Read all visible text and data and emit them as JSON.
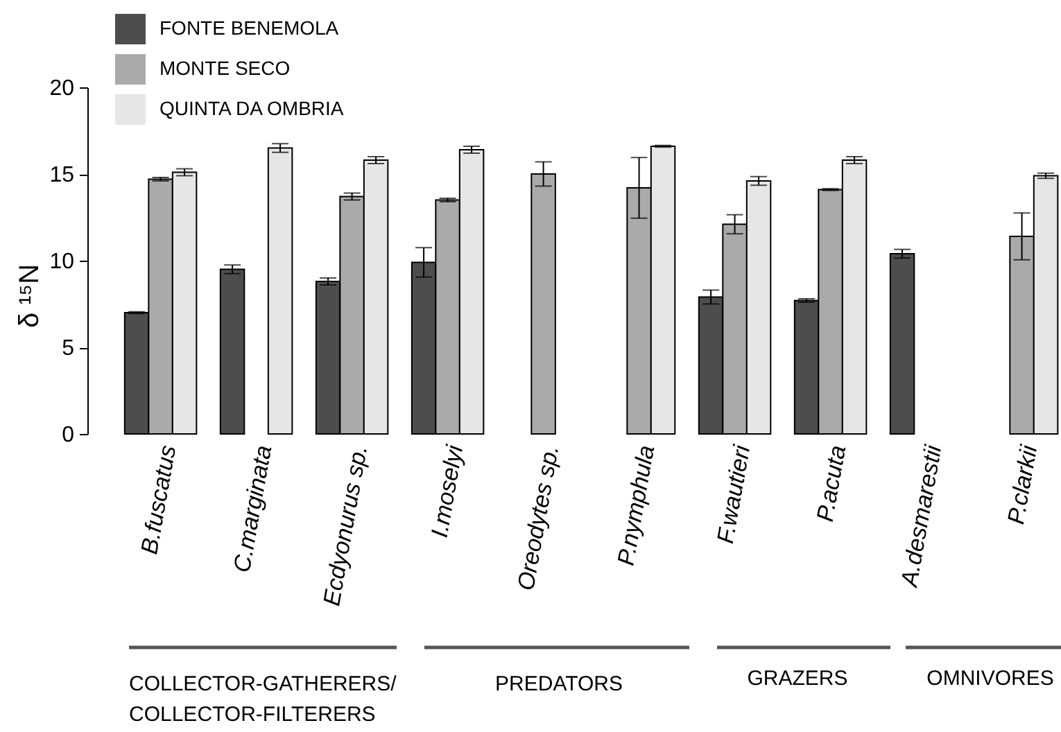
{
  "chart_data": {
    "type": "bar",
    "categories": [
      "B.fuscatus",
      "C.marginata",
      "Ecdyonurus sp.",
      "I.moselyi",
      "Oreodytes sp.",
      "P.nymphula",
      "F.wautieri",
      "P.acuta",
      "A.desmarestii",
      "P.clarkii"
    ],
    "series": [
      {
        "name": "FONTE BENEMOLA",
        "color": "#4d4d4d",
        "values": [
          7.0,
          9.5,
          8.8,
          9.9,
          null,
          null,
          7.9,
          7.7,
          10.4,
          null
        ],
        "errors": [
          0.05,
          0.25,
          0.2,
          0.85,
          null,
          null,
          0.4,
          0.1,
          0.25,
          null
        ]
      },
      {
        "name": "MONTE SECO",
        "color": "#aaaaaa",
        "values": [
          14.7,
          null,
          13.7,
          13.5,
          15.0,
          14.2,
          12.1,
          14.1,
          null,
          11.4
        ],
        "errors": [
          0.1,
          null,
          0.2,
          0.1,
          0.7,
          1.75,
          0.55,
          0.05,
          null,
          1.35
        ]
      },
      {
        "name": "QUINTA DA OMBRIA",
        "color": "#e6e6e6",
        "values": [
          15.1,
          16.5,
          15.8,
          16.4,
          null,
          16.6,
          14.6,
          15.8,
          null,
          14.9
        ],
        "errors": [
          0.2,
          0.25,
          0.2,
          0.2,
          null,
          0.05,
          0.25,
          0.2,
          null,
          0.15
        ]
      }
    ],
    "ylabel": "δ ¹⁵N",
    "ylim": [
      0,
      20
    ],
    "yticks": [
      0,
      5,
      10,
      15,
      20
    ],
    "legend": "top left",
    "annotations": [
      "COLLECTOR-GATHERERS/\nCOLLECTOR-FILTERERS",
      "PREDATORS",
      "GRAZERS",
      "OMNIVORES"
    ]
  }
}
